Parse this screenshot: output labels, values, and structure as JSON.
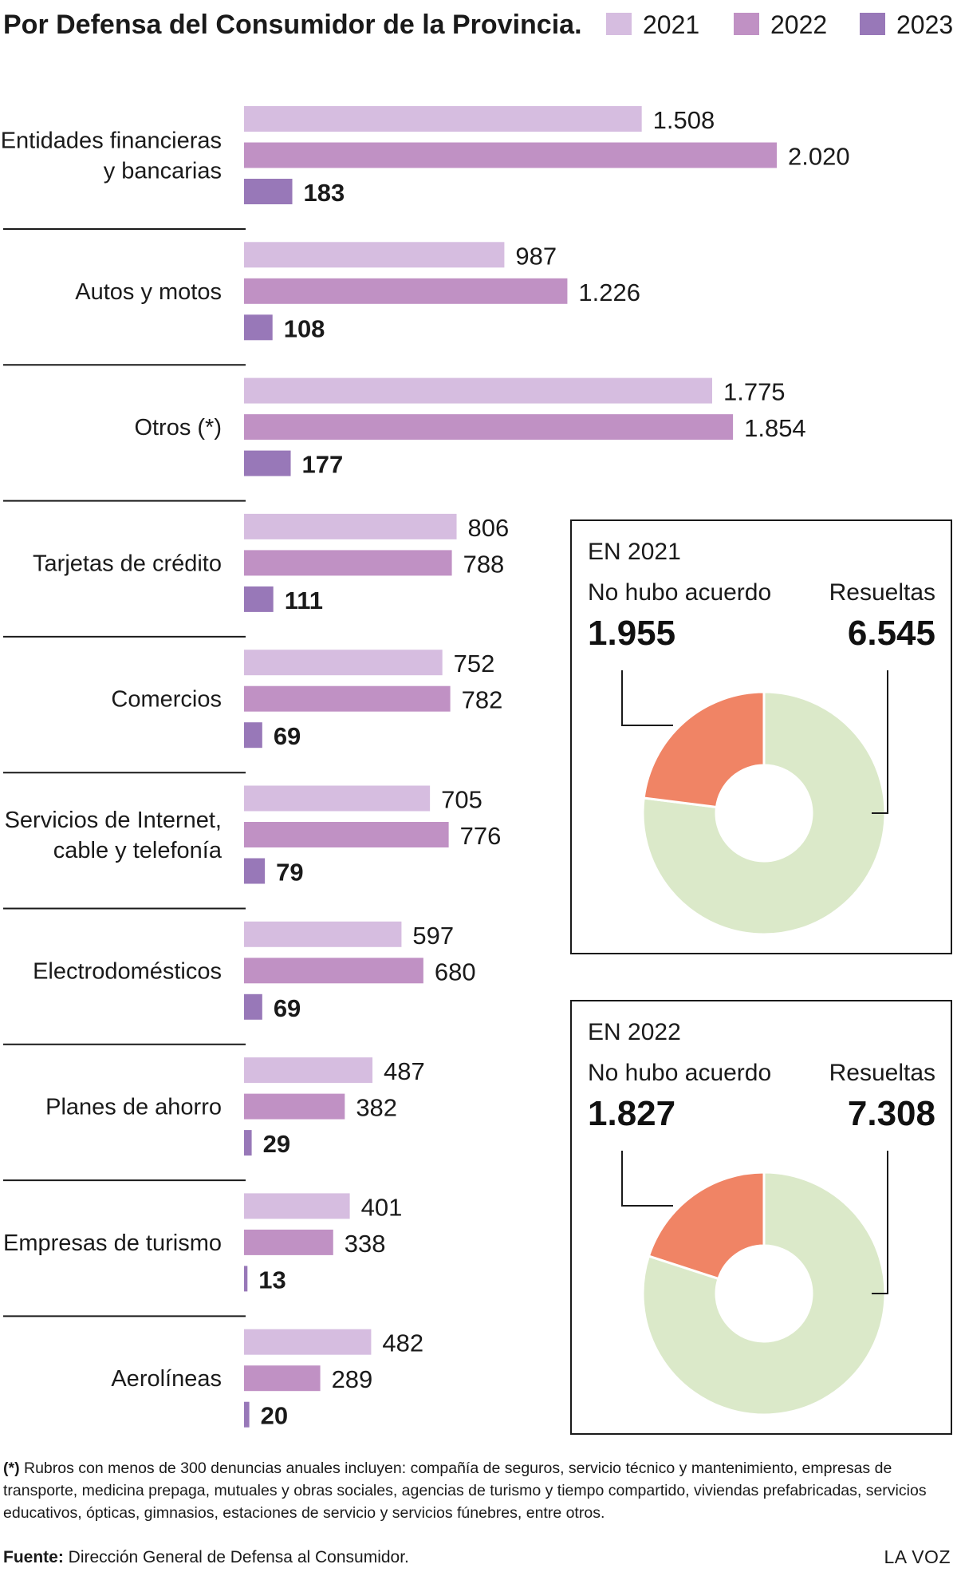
{
  "title": "Por Defensa del Consumidor de la Provincia.",
  "legend": [
    {
      "label": "2021",
      "color": "#d6bde0"
    },
    {
      "label": "2022",
      "color": "#c091c4"
    },
    {
      "label": "2023",
      "color": "#9878b8"
    }
  ],
  "chart_data": [
    {
      "type": "bar",
      "orientation": "horizontal",
      "title": "Por Defensa del Consumidor de la Provincia.",
      "categories": [
        [
          "Entidades financieras",
          "y bancarias"
        ],
        [
          "Autos y motos"
        ],
        [
          "Otros (*)"
        ],
        [
          "Tarjetas de crédito"
        ],
        [
          "Comercios"
        ],
        [
          "Servicios de Internet,",
          "cable y telefonía"
        ],
        [
          "Electrodomésticos"
        ],
        [
          "Planes de ahorro"
        ],
        [
          "Empresas de turismo"
        ],
        [
          "Aerolíneas"
        ]
      ],
      "series": [
        {
          "name": "2021",
          "color": "#d6bde0",
          "values": [
            1508,
            987,
            1775,
            806,
            752,
            705,
            597,
            487,
            401,
            482
          ],
          "labels": [
            "1.508",
            "987",
            "1.775",
            "806",
            "752",
            "705",
            "597",
            "487",
            "401",
            "482"
          ]
        },
        {
          "name": "2022",
          "color": "#c091c4",
          "values": [
            2020,
            1226,
            1854,
            788,
            782,
            776,
            680,
            382,
            338,
            289
          ],
          "labels": [
            "2.020",
            "1.226",
            "1.854",
            "788",
            "782",
            "776",
            "680",
            "382",
            "338",
            "289"
          ]
        },
        {
          "name": "2023",
          "color": "#9878b8",
          "values": [
            183,
            108,
            177,
            111,
            69,
            79,
            69,
            29,
            13,
            20
          ],
          "labels": [
            "183",
            "108",
            "177",
            "111",
            "69",
            "79",
            "69",
            "29",
            "13",
            "20"
          ]
        }
      ],
      "grid": false,
      "legend_position": "top-right"
    },
    {
      "type": "pie",
      "variant": "donut",
      "title": "EN 2021",
      "slices": [
        {
          "label": "No hubo acuerdo",
          "value": 1955,
          "display": "1.955",
          "color": "#f08465"
        },
        {
          "label": "Resueltas",
          "value": 6545,
          "display": "6.545",
          "color": "#dbe9c9"
        }
      ]
    },
    {
      "type": "pie",
      "variant": "donut",
      "title": "EN 2022",
      "slices": [
        {
          "label": "No hubo acuerdo",
          "value": 1827,
          "display": "1.827",
          "color": "#f08465"
        },
        {
          "label": "Resueltas",
          "value": 7308,
          "display": "7.308",
          "color": "#dbe9c9"
        }
      ]
    }
  ],
  "footnote": {
    "mark": "(*)",
    "text": " Rubros con menos de 300 denuncias anuales incluyen: compañía de seguros, servicio técnico y mantenimiento, empresas de transporte, medicina prepaga, mutuales y obras sociales, agencias de turismo y tiempo compartido, viviendas prefabricadas, servicios educativos, ópticas, gimnasios, estaciones de servicio y servicios fúnebres, entre otros."
  },
  "source": {
    "label": "Fuente:",
    "text": " Dirección General de Defensa al Consumidor."
  },
  "brand": "LA VOZ"
}
